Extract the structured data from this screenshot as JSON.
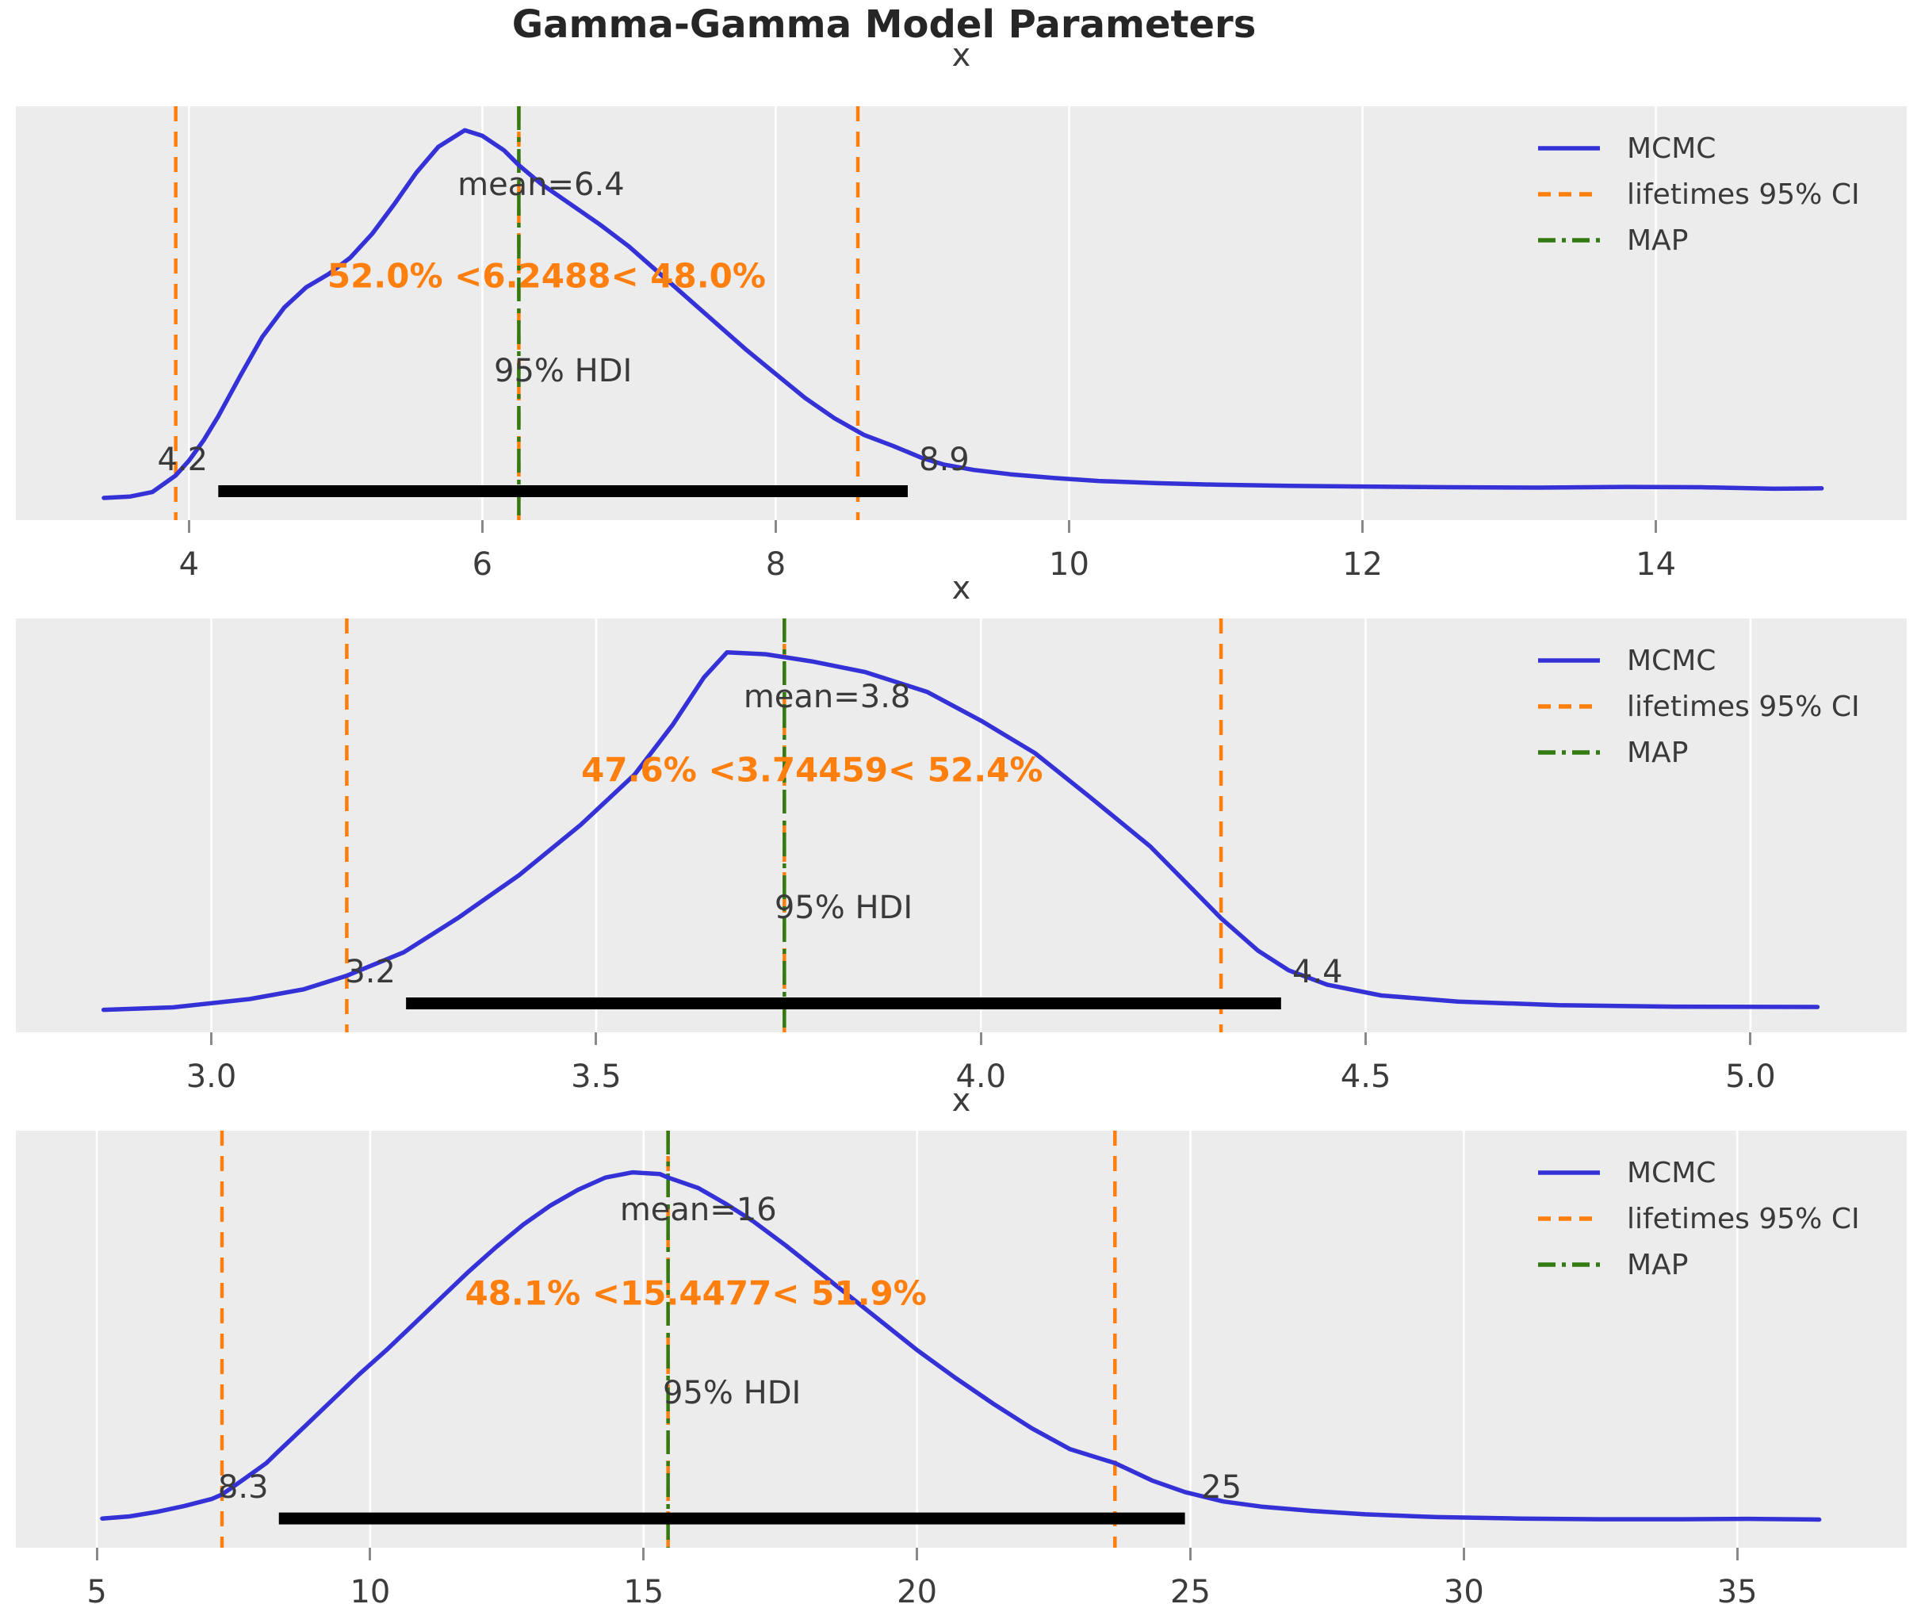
{
  "figure_title": "Gamma-Gamma Model Parameters",
  "colors": {
    "mcmc_line": "#3431d6",
    "ci_line": "#ff7f0e",
    "map_line": "#337a12",
    "hdi_bar": "#000000",
    "panel_bg": "#ececec",
    "grid_line": "#ffffff",
    "text": "#3a3a3a"
  },
  "legend": {
    "items": [
      {
        "label": "MCMC",
        "style": "solid",
        "color_key": "mcmc_line"
      },
      {
        "label": "lifetimes 95% CI",
        "style": "dashed",
        "color_key": "ci_line"
      },
      {
        "label": "MAP",
        "style": "dashdot",
        "color_key": "map_line"
      }
    ]
  },
  "chart_data": [
    {
      "type": "line",
      "title": "x",
      "xlabel": "",
      "ylabel": "",
      "grid": "vertical-white",
      "legend_position": "upper right",
      "mean": 6.4,
      "mean_label": "mean=6.4",
      "map": 6.2488,
      "interval_label": "52.0% <6.2488< 48.0%",
      "lifetimes_ci": [
        3.91,
        8.56
      ],
      "hdi_label": "95% HDI",
      "hdi": [
        4.2,
        8.9
      ],
      "hdi_lo_label": "4.2",
      "hdi_hi_label": "8.9",
      "xlim": [
        2.82,
        15.71
      ],
      "xticks": [
        4,
        6,
        8,
        10,
        12,
        14
      ],
      "xtick_labels": [
        "4",
        "6",
        "8",
        "10",
        "12",
        "14"
      ],
      "curve": [
        [
          3.42,
          0.004
        ],
        [
          3.6,
          0.008
        ],
        [
          3.75,
          0.02
        ],
        [
          3.91,
          0.065
        ],
        [
          4.0,
          0.105
        ],
        [
          4.1,
          0.16
        ],
        [
          4.2,
          0.225
        ],
        [
          4.35,
          0.335
        ],
        [
          4.5,
          0.44
        ],
        [
          4.65,
          0.52
        ],
        [
          4.8,
          0.575
        ],
        [
          4.95,
          0.61
        ],
        [
          5.1,
          0.655
        ],
        [
          5.25,
          0.72
        ],
        [
          5.4,
          0.8
        ],
        [
          5.55,
          0.885
        ],
        [
          5.7,
          0.955
        ],
        [
          5.88,
          1.0
        ],
        [
          6.0,
          0.985
        ],
        [
          6.15,
          0.945
        ],
        [
          6.25,
          0.905
        ],
        [
          6.4,
          0.855
        ],
        [
          6.6,
          0.8
        ],
        [
          6.8,
          0.745
        ],
        [
          7.0,
          0.685
        ],
        [
          7.2,
          0.615
        ],
        [
          7.4,
          0.545
        ],
        [
          7.6,
          0.475
        ],
        [
          7.8,
          0.405
        ],
        [
          8.0,
          0.34
        ],
        [
          8.2,
          0.275
        ],
        [
          8.4,
          0.22
        ],
        [
          8.6,
          0.175
        ],
        [
          8.8,
          0.145
        ],
        [
          9.0,
          0.112
        ],
        [
          9.15,
          0.094
        ],
        [
          9.35,
          0.08
        ],
        [
          9.6,
          0.068
        ],
        [
          9.9,
          0.058
        ],
        [
          10.2,
          0.05
        ],
        [
          10.6,
          0.044
        ],
        [
          11.0,
          0.04
        ],
        [
          11.5,
          0.037
        ],
        [
          12.0,
          0.035
        ],
        [
          12.6,
          0.033
        ],
        [
          13.2,
          0.032
        ],
        [
          13.8,
          0.034
        ],
        [
          14.3,
          0.033
        ],
        [
          14.8,
          0.029
        ],
        [
          15.13,
          0.03
        ]
      ]
    },
    {
      "type": "line",
      "title": "x",
      "xlabel": "",
      "ylabel": "",
      "grid": "vertical-white",
      "legend_position": "upper right",
      "mean": 3.8,
      "mean_label": "mean=3.8",
      "map": 3.74459,
      "interval_label": "47.6% <3.74459< 52.4%",
      "lifetimes_ci": [
        3.176,
        4.312
      ],
      "hdi_label": "95% HDI",
      "hdi": [
        3.2,
        4.4
      ],
      "hdi_lo_label": "3.2",
      "hdi_hi_label": "4.4",
      "hdi_bar": [
        3.253,
        4.39
      ],
      "xlim": [
        2.746,
        5.203
      ],
      "xticks": [
        3.0,
        3.5,
        4.0,
        4.5,
        5.0
      ],
      "xtick_labels": [
        "3.0",
        "3.5",
        "4.0",
        "4.5",
        "5.0"
      ],
      "curve": [
        [
          2.86,
          0.005
        ],
        [
          2.95,
          0.012
        ],
        [
          3.05,
          0.035
        ],
        [
          3.12,
          0.062
        ],
        [
          3.176,
          0.1
        ],
        [
          3.25,
          0.165
        ],
        [
          3.32,
          0.26
        ],
        [
          3.4,
          0.38
        ],
        [
          3.48,
          0.52
        ],
        [
          3.55,
          0.66
        ],
        [
          3.6,
          0.8
        ],
        [
          3.64,
          0.93
        ],
        [
          3.67,
          1.0
        ],
        [
          3.72,
          0.995
        ],
        [
          3.78,
          0.975
        ],
        [
          3.85,
          0.945
        ],
        [
          3.93,
          0.89
        ],
        [
          4.0,
          0.81
        ],
        [
          4.07,
          0.72
        ],
        [
          4.14,
          0.6
        ],
        [
          4.22,
          0.46
        ],
        [
          4.28,
          0.33
        ],
        [
          4.312,
          0.26
        ],
        [
          4.36,
          0.17
        ],
        [
          4.4,
          0.115
        ],
        [
          4.45,
          0.075
        ],
        [
          4.52,
          0.045
        ],
        [
          4.62,
          0.028
        ],
        [
          4.75,
          0.018
        ],
        [
          4.9,
          0.014
        ],
        [
          5.087,
          0.013
        ]
      ]
    },
    {
      "type": "line",
      "title": "x",
      "xlabel": "",
      "ylabel": "",
      "grid": "vertical-white",
      "legend_position": "upper right",
      "mean": 16,
      "mean_label": "mean=16",
      "map": 15.4477,
      "interval_label": "48.1% <15.4477< 51.9%",
      "lifetimes_ci": [
        7.29,
        23.62
      ],
      "hdi_label": "95% HDI",
      "hdi": [
        8.3,
        25
      ],
      "hdi_lo_label": "8.3",
      "hdi_hi_label": "25",
      "hdi_bar": [
        8.33,
        24.9
      ],
      "xlim": [
        3.52,
        38.1
      ],
      "xticks": [
        5,
        10,
        15,
        20,
        25,
        30,
        35
      ],
      "xtick_labels": [
        "5",
        "10",
        "15",
        "20",
        "25",
        "30",
        "35"
      ],
      "curve": [
        [
          5.1,
          0.006
        ],
        [
          5.6,
          0.012
        ],
        [
          6.1,
          0.025
        ],
        [
          6.6,
          0.042
        ],
        [
          7.1,
          0.062
        ],
        [
          7.29,
          0.075
        ],
        [
          7.7,
          0.12
        ],
        [
          8.1,
          0.165
        ],
        [
          8.33,
          0.2
        ],
        [
          8.8,
          0.27
        ],
        [
          9.3,
          0.345
        ],
        [
          9.8,
          0.42
        ],
        [
          10.3,
          0.49
        ],
        [
          10.8,
          0.565
        ],
        [
          11.3,
          0.64
        ],
        [
          11.8,
          0.715
        ],
        [
          12.3,
          0.785
        ],
        [
          12.8,
          0.85
        ],
        [
          13.3,
          0.905
        ],
        [
          13.8,
          0.95
        ],
        [
          14.3,
          0.985
        ],
        [
          14.8,
          1.0
        ],
        [
          15.3,
          0.995
        ],
        [
          15.45,
          0.985
        ],
        [
          16.0,
          0.955
        ],
        [
          16.5,
          0.91
        ],
        [
          17.0,
          0.86
        ],
        [
          17.6,
          0.79
        ],
        [
          18.2,
          0.715
        ],
        [
          18.8,
          0.64
        ],
        [
          19.4,
          0.565
        ],
        [
          20.0,
          0.49
        ],
        [
          20.7,
          0.41
        ],
        [
          21.4,
          0.335
        ],
        [
          22.1,
          0.265
        ],
        [
          22.8,
          0.205
        ],
        [
          23.62,
          0.165
        ],
        [
          24.3,
          0.115
        ],
        [
          24.9,
          0.082
        ],
        [
          25.6,
          0.055
        ],
        [
          26.3,
          0.04
        ],
        [
          27.2,
          0.028
        ],
        [
          28.2,
          0.018
        ],
        [
          29.5,
          0.01
        ],
        [
          31.0,
          0.006
        ],
        [
          32.5,
          0.004
        ],
        [
          34.0,
          0.004
        ],
        [
          35.2,
          0.005
        ],
        [
          36.5,
          0.003
        ]
      ]
    }
  ]
}
